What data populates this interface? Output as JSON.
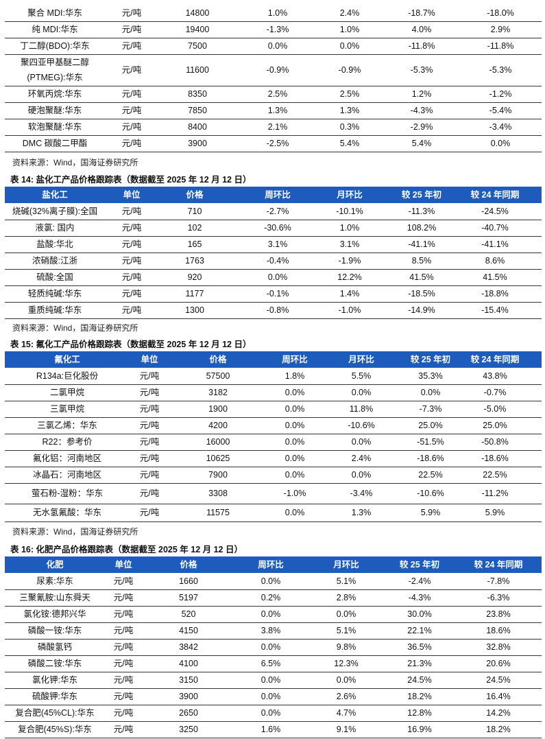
{
  "tables": [
    {
      "rows": [
        [
          "聚合 MDI:华东",
          "元/吨",
          "14800",
          "1.0%",
          "2.4%",
          "-18.7%",
          "-18.0%"
        ],
        [
          "纯 MDI:华东",
          "元/吨",
          "19400",
          "-1.3%",
          "1.0%",
          "4.0%",
          "2.9%"
        ],
        [
          "丁二醇(BDO):华东",
          "元/吨",
          "7500",
          "0.0%",
          "0.0%",
          "-11.8%",
          "-11.8%"
        ],
        [
          "聚四亚甲基醚二醇(PTMEG):华东",
          "元/吨",
          "11600",
          "-0.9%",
          "-0.9%",
          "-5.3%",
          "-5.3%"
        ],
        [
          "环氧丙烷:华东",
          "元/吨",
          "8350",
          "2.5%",
          "2.5%",
          "1.2%",
          "-1.2%"
        ],
        [
          "硬泡聚醚:华东",
          "元/吨",
          "7850",
          "1.3%",
          "1.3%",
          "-4.3%",
          "-5.4%"
        ],
        [
          "软泡聚醚:华东",
          "元/吨",
          "8400",
          "2.1%",
          "0.3%",
          "-2.9%",
          "-3.4%"
        ],
        [
          "DMC 碳酸二甲酯",
          "元/吨",
          "3900",
          "-2.5%",
          "5.4%",
          "5.4%",
          "0.0%"
        ]
      ],
      "source": "资料来源：Wind，国海证券研究所"
    },
    {
      "title": "表 14:  盐化工产品价格跟踪表（数据截至 2025 年 12 月 12 日）",
      "header": [
        "盐化工",
        "单位",
        "价格",
        "周环比",
        "月环比",
        "较 25 年初",
        "较 24 年同期"
      ],
      "rows": [
        [
          "烧碱(32%离子膜):全国",
          "元/吨",
          "710",
          "-2.7%",
          "-10.1%",
          "-11.3%",
          "-24.5%"
        ],
        [
          "液氯: 国内",
          "元/吨",
          "102",
          "-30.6%",
          "1.0%",
          "108.2%",
          "-40.7%"
        ],
        [
          "盐酸:华北",
          "元/吨",
          "165",
          "3.1%",
          "3.1%",
          "-41.1%",
          "-41.1%"
        ],
        [
          "浓硝酸:江浙",
          "元/吨",
          "1763",
          "-0.4%",
          "-1.9%",
          "8.5%",
          "8.6%"
        ],
        [
          "硫酸:全国",
          "元/吨",
          "920",
          "0.0%",
          "12.2%",
          "41.5%",
          "41.5%"
        ],
        [
          "轻质纯碱:华东",
          "元/吨",
          "1177",
          "-0.1%",
          "1.4%",
          "-18.5%",
          "-18.8%"
        ],
        [
          "重质纯碱:华东",
          "元/吨",
          "1300",
          "-0.8%",
          "-1.0%",
          "-14.9%",
          "-15.4%"
        ]
      ],
      "source": "资料来源：Wind，国海证券研究所"
    },
    {
      "title": "表 15:  氟化工产品价格跟踪表（数据截至 2025 年 12 月 12 日）",
      "header": [
        "氟化工",
        "单位",
        "价格",
        "周环比",
        "月环比",
        "较 25 年初",
        "较 24 年同期"
      ],
      "rows": [
        [
          "R134a:巨化股份",
          "元/吨",
          "57500",
          "1.8%",
          "5.5%",
          "35.3%",
          "43.8%"
        ],
        [
          "二氯甲烷",
          "元/吨",
          "3182",
          "0.0%",
          "0.0%",
          "0.0%",
          "-0.7%"
        ],
        [
          "三氯甲烷",
          "元/吨",
          "1900",
          "0.0%",
          "11.8%",
          "-7.3%",
          "-5.0%"
        ],
        [
          "三氯乙烯：华东",
          "元/吨",
          "4200",
          "0.0%",
          "-10.6%",
          "25.0%",
          "25.0%"
        ],
        [
          "R22：参考价",
          "元/吨",
          "16000",
          "0.0%",
          "0.0%",
          "-51.5%",
          "-50.8%"
        ],
        [
          "氟化铝：河南地区",
          "元/吨",
          "10625",
          "0.0%",
          "2.4%",
          "-18.6%",
          "-18.6%"
        ],
        [
          "冰晶石：河南地区",
          "元/吨",
          "7900",
          "0.0%",
          "0.0%",
          "22.5%",
          "22.5%"
        ],
        [
          "萤石粉-湿粉：华东",
          "元/吨",
          "3308",
          "-1.0%",
          "-3.4%",
          "-10.6%",
          "-11.2%"
        ],
        [
          "无水氢氟酸：华东",
          "元/吨",
          "11575",
          "0.0%",
          "1.3%",
          "5.9%",
          "5.9%"
        ]
      ],
      "source": "资料来源：Wind，国海证券研究所"
    },
    {
      "title": "表 16:  化肥产品价格跟踪表（数据截至 2025 年 12 月 12 日）",
      "header": [
        "化肥",
        "单位",
        "价格",
        "周环比",
        "月环比",
        "较 25 年初",
        "较 24 年同期"
      ],
      "rows": [
        [
          "尿素:华东",
          "元/吨",
          "1660",
          "0.0%",
          "5.1%",
          "-2.4%",
          "-7.8%"
        ],
        [
          "三聚氰胺:山东舜天",
          "元/吨",
          "5197",
          "0.2%",
          "2.8%",
          "-4.3%",
          "-6.3%"
        ],
        [
          "氯化铵:德邦兴华",
          "元/吨",
          "520",
          "0.0%",
          "0.0%",
          "30.0%",
          "23.8%"
        ],
        [
          "磷酸一铵:华东",
          "元/吨",
          "4150",
          "3.8%",
          "5.1%",
          "22.1%",
          "18.6%"
        ],
        [
          "磷酸氢钙",
          "元/吨",
          "3842",
          "0.0%",
          "9.8%",
          "36.5%",
          "32.8%"
        ],
        [
          "磷酸二铵:华东",
          "元/吨",
          "4100",
          "6.5%",
          "12.3%",
          "21.3%",
          "20.6%"
        ],
        [
          "氯化钾:华东",
          "元/吨",
          "3150",
          "0.0%",
          "0.0%",
          "24.5%",
          "24.5%"
        ],
        [
          "硫酸钾:华东",
          "元/吨",
          "3900",
          "0.0%",
          "2.6%",
          "18.2%",
          "16.4%"
        ],
        [
          "复合肥(45%CL):华东",
          "元/吨",
          "2650",
          "0.0%",
          "4.7%",
          "12.8%",
          "14.2%"
        ],
        [
          "复合肥(45%S):华东",
          "元/吨",
          "3250",
          "1.6%",
          "9.1%",
          "16.9%",
          "18.2%"
        ]
      ]
    }
  ]
}
